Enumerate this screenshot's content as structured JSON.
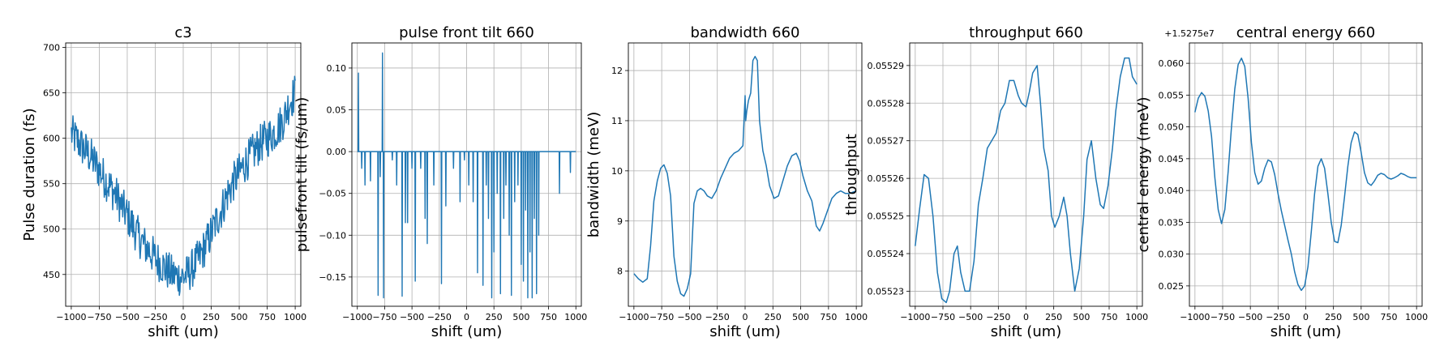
{
  "line_color": "#1f77b4",
  "grid_color": "#b0b0b0",
  "chart_data": [
    {
      "type": "line",
      "title": "c3",
      "xlabel": "shift (um)",
      "ylabel": "Pulse duration (fs)",
      "offset_text": "",
      "xlim": [
        -1050,
        1050
      ],
      "ylim": [
        415,
        705
      ],
      "xticks": [
        -1000,
        -750,
        -500,
        -250,
        0,
        250,
        500,
        750,
        1000
      ],
      "yticks": [
        450,
        500,
        550,
        600,
        650,
        700
      ],
      "ytick_labels": [
        "450",
        "500",
        "550",
        "600",
        "650",
        "700"
      ],
      "grid": true,
      "series": [
        {
          "x": [
            -1000,
            -950,
            -900,
            -850,
            -800,
            -750,
            -700,
            -650,
            -600,
            -550,
            -500,
            -450,
            -400,
            -350,
            -300,
            -250,
            -200,
            -150,
            -100,
            -50,
            0,
            50,
            100,
            150,
            200,
            250,
            300,
            350,
            400,
            450,
            500,
            550,
            600,
            650,
            700,
            750,
            800,
            850,
            900,
            950,
            1000
          ],
          "y": [
            605,
            598,
            590,
            583,
            575,
            565,
            555,
            546,
            537,
            525,
            515,
            503,
            492,
            483,
            476,
            468,
            462,
            455,
            450,
            448,
            447,
            452,
            460,
            470,
            482,
            495,
            510,
            524,
            540,
            552,
            562,
            572,
            580,
            588,
            595,
            600,
            605,
            612,
            622,
            640,
            650
          ],
          "noise": 22
        }
      ]
    },
    {
      "type": "line",
      "title": "pulse front tilt 660",
      "xlabel": "shift (um)",
      "ylabel": "pulsefront tilt (fs/um)",
      "offset_text": "",
      "xlim": [
        -1050,
        1050
      ],
      "ylim": [
        -0.185,
        0.13
      ],
      "xticks": [
        -1000,
        -750,
        -500,
        -250,
        0,
        250,
        500,
        750,
        1000
      ],
      "yticks": [
        -0.15,
        -0.1,
        -0.05,
        0.0,
        0.05,
        0.1
      ],
      "ytick_labels": [
        "−0.15",
        "−0.10",
        "−0.05",
        "0.00",
        "0.05",
        "0.10"
      ],
      "grid": true,
      "baseline": 0.0,
      "spikes": [
        [
          -990,
          0.094
        ],
        [
          -960,
          -0.02
        ],
        [
          -930,
          -0.04
        ],
        [
          -880,
          -0.035
        ],
        [
          -810,
          -0.172
        ],
        [
          -790,
          -0.03
        ],
        [
          -770,
          0.118
        ],
        [
          -760,
          -0.175
        ],
        [
          -680,
          -0.01
        ],
        [
          -640,
          -0.04
        ],
        [
          -590,
          -0.173
        ],
        [
          -560,
          -0.085
        ],
        [
          -540,
          -0.085
        ],
        [
          -500,
          -0.02
        ],
        [
          -470,
          -0.155
        ],
        [
          -420,
          -0.02
        ],
        [
          -380,
          -0.08
        ],
        [
          -360,
          -0.11
        ],
        [
          -300,
          -0.04
        ],
        [
          -230,
          -0.158
        ],
        [
          -190,
          -0.065
        ],
        [
          -120,
          -0.02
        ],
        [
          -60,
          -0.06
        ],
        [
          -20,
          -0.01
        ],
        [
          20,
          -0.04
        ],
        [
          60,
          -0.06
        ],
        [
          100,
          -0.145
        ],
        [
          150,
          -0.16
        ],
        [
          180,
          -0.04
        ],
        [
          200,
          -0.08
        ],
        [
          230,
          -0.175
        ],
        [
          250,
          -0.12
        ],
        [
          280,
          -0.05
        ],
        [
          310,
          -0.17
        ],
        [
          340,
          -0.08
        ],
        [
          360,
          -0.04
        ],
        [
          390,
          -0.1
        ],
        [
          410,
          -0.172
        ],
        [
          440,
          -0.06
        ],
        [
          470,
          -0.04
        ],
        [
          500,
          -0.135
        ],
        [
          520,
          -0.155
        ],
        [
          540,
          -0.07
        ],
        [
          560,
          -0.175
        ],
        [
          580,
          -0.12
        ],
        [
          600,
          -0.175
        ],
        [
          620,
          -0.08
        ],
        [
          640,
          -0.17
        ],
        [
          660,
          -0.1
        ],
        [
          850,
          -0.05
        ],
        [
          950,
          -0.025
        ]
      ]
    },
    {
      "type": "line",
      "title": "bandwidth 660",
      "xlabel": "shift (um)",
      "ylabel": "bandwidth (meV)",
      "offset_text": "",
      "xlim": [
        -1050,
        1050
      ],
      "ylim": [
        7.3,
        12.55
      ],
      "xticks": [
        -1000,
        -750,
        -500,
        -250,
        0,
        250,
        500,
        750,
        1000
      ],
      "yticks": [
        8,
        9,
        10,
        11,
        12
      ],
      "ytick_labels": [
        "8",
        "9",
        "10",
        "11",
        "12"
      ],
      "grid": true,
      "series": [
        {
          "x": [
            -1000,
            -960,
            -920,
            -880,
            -850,
            -820,
            -790,
            -760,
            -730,
            -700,
            -670,
            -640,
            -610,
            -580,
            -550,
            -520,
            -490,
            -460,
            -430,
            -400,
            -370,
            -340,
            -300,
            -260,
            -220,
            -180,
            -140,
            -100,
            -60,
            -20,
            0,
            5,
            15,
            30,
            50,
            70,
            90,
            110,
            130,
            160,
            190,
            220,
            260,
            300,
            340,
            380,
            420,
            460,
            490,
            520,
            560,
            600,
            640,
            670,
            700,
            740,
            780,
            820,
            860,
            900,
            940,
            1000
          ],
          "y": [
            7.95,
            7.85,
            7.78,
            7.85,
            8.5,
            9.4,
            9.8,
            10.05,
            10.12,
            9.95,
            9.5,
            8.3,
            7.8,
            7.55,
            7.5,
            7.65,
            7.95,
            9.35,
            9.6,
            9.65,
            9.6,
            9.5,
            9.45,
            9.6,
            9.85,
            10.05,
            10.25,
            10.35,
            10.4,
            10.5,
            11.5,
            11.0,
            11.2,
            11.4,
            11.55,
            12.2,
            12.28,
            12.2,
            11.0,
            10.4,
            10.1,
            9.7,
            9.45,
            9.5,
            9.8,
            10.1,
            10.3,
            10.35,
            10.2,
            9.9,
            9.6,
            9.4,
            8.9,
            8.8,
            8.95,
            9.2,
            9.45,
            9.55,
            9.6,
            9.55,
            9.55,
            9.6
          ]
        }
      ]
    },
    {
      "type": "line",
      "title": "throughput 660",
      "xlabel": "shift (um)",
      "ylabel": "throughput",
      "offset_text": "",
      "xlim": [
        -1050,
        1050
      ],
      "ylim": [
        0.055226,
        0.055296
      ],
      "xticks": [
        -1000,
        -750,
        -500,
        -250,
        0,
        250,
        500,
        750,
        1000
      ],
      "yticks": [
        0.05523,
        0.05524,
        0.05525,
        0.05526,
        0.05527,
        0.05528,
        0.05529
      ],
      "ytick_labels": [
        "0.05523",
        "0.05524",
        "0.05525",
        "0.05526",
        "0.05527",
        "0.05528",
        "0.05529"
      ],
      "grid": true,
      "series": [
        {
          "x": [
            -1000,
            -960,
            -920,
            -880,
            -840,
            -800,
            -760,
            -720,
            -690,
            -650,
            -620,
            -590,
            -550,
            -510,
            -470,
            -430,
            -390,
            -350,
            -310,
            -270,
            -230,
            -190,
            -150,
            -110,
            -70,
            -40,
            0,
            30,
            60,
            100,
            130,
            160,
            200,
            230,
            260,
            300,
            340,
            370,
            400,
            440,
            480,
            520,
            550,
            590,
            630,
            670,
            700,
            740,
            780,
            810,
            850,
            890,
            930,
            960,
            1000
          ],
          "y": [
            0.055242,
            0.055252,
            0.055261,
            0.05526,
            0.05525,
            0.055235,
            0.055228,
            0.055227,
            0.05523,
            0.05524,
            0.055242,
            0.055235,
            0.05523,
            0.05523,
            0.055238,
            0.055253,
            0.05526,
            0.055268,
            0.05527,
            0.055272,
            0.055278,
            0.05528,
            0.055286,
            0.055286,
            0.055282,
            0.05528,
            0.055279,
            0.055283,
            0.055288,
            0.05529,
            0.05528,
            0.055268,
            0.055262,
            0.05525,
            0.055247,
            0.05525,
            0.055255,
            0.05525,
            0.05524,
            0.05523,
            0.055236,
            0.05525,
            0.055265,
            0.05527,
            0.05526,
            0.055253,
            0.055252,
            0.055258,
            0.055268,
            0.055278,
            0.055287,
            0.055292,
            0.055292,
            0.055287,
            0.055285
          ]
        }
      ]
    },
    {
      "type": "line",
      "title": "central energy 660",
      "xlabel": "shift (um)",
      "ylabel": "central energy (meV)",
      "offset_text": "+1.5275e7",
      "xlim": [
        -1050,
        1050
      ],
      "ylim": [
        0.0218,
        0.0632
      ],
      "xticks": [
        -1000,
        -750,
        -500,
        -250,
        0,
        250,
        500,
        750,
        1000
      ],
      "yticks": [
        0.025,
        0.03,
        0.035,
        0.04,
        0.045,
        0.05,
        0.055,
        0.06
      ],
      "ytick_labels": [
        "0.025",
        "0.030",
        "0.035",
        "0.040",
        "0.045",
        "0.050",
        "0.055",
        "0.060"
      ],
      "grid": true,
      "series": [
        {
          "x": [
            -1000,
            -970,
            -940,
            -910,
            -880,
            -850,
            -820,
            -790,
            -760,
            -730,
            -700,
            -670,
            -640,
            -610,
            -580,
            -550,
            -520,
            -490,
            -460,
            -430,
            -400,
            -370,
            -340,
            -310,
            -280,
            -250,
            -220,
            -190,
            -160,
            -130,
            -100,
            -70,
            -40,
            -10,
            20,
            50,
            80,
            110,
            140,
            170,
            200,
            230,
            260,
            290,
            320,
            350,
            380,
            410,
            440,
            470,
            500,
            530,
            560,
            590,
            620,
            650,
            680,
            710,
            740,
            770,
            800,
            830,
            860,
            890,
            920,
            950,
            980,
            1000
          ],
          "y": [
            0.0523,
            0.0545,
            0.0554,
            0.0548,
            0.0525,
            0.0485,
            0.042,
            0.037,
            0.0348,
            0.037,
            0.043,
            0.05,
            0.056,
            0.0598,
            0.0608,
            0.0595,
            0.0545,
            0.0475,
            0.0428,
            0.041,
            0.0415,
            0.0435,
            0.0448,
            0.0445,
            0.0425,
            0.0395,
            0.0368,
            0.0345,
            0.0322,
            0.03,
            0.0272,
            0.0252,
            0.0243,
            0.025,
            0.028,
            0.0335,
            0.0395,
            0.0438,
            0.045,
            0.0435,
            0.0395,
            0.035,
            0.032,
            0.0318,
            0.0345,
            0.039,
            0.0438,
            0.0475,
            0.0492,
            0.0488,
            0.046,
            0.0428,
            0.0412,
            0.0408,
            0.0415,
            0.0424,
            0.0427,
            0.0425,
            0.042,
            0.0418,
            0.042,
            0.0423,
            0.0427,
            0.0425,
            0.0422,
            0.042,
            0.042,
            0.042
          ]
        }
      ]
    }
  ]
}
